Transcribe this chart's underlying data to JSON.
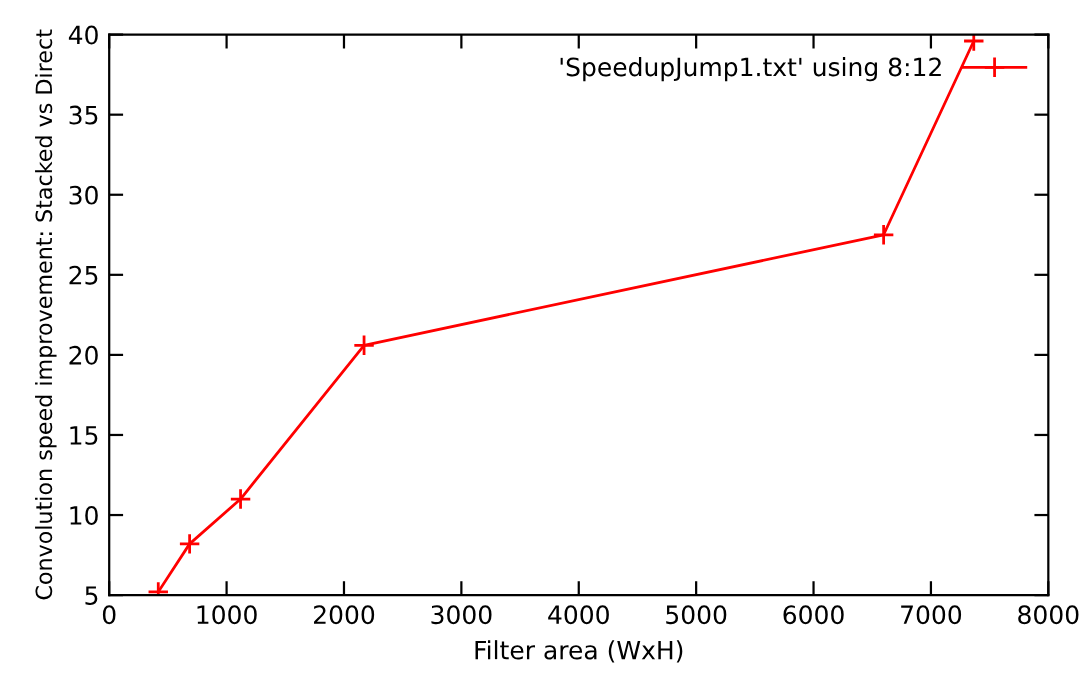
{
  "chart_data": {
    "type": "line",
    "xlabel": "Filter area (WxH)",
    "ylabel": "Convolution speed improvement: Stacked vs Direct",
    "x": [
      418,
      685,
      1119,
      2171,
      6597,
      7365
    ],
    "series": [
      {
        "name": "'SpeedupJump1.txt' using 8:12",
        "color": "#ff0000",
        "values": [
          5.2,
          8.2,
          11.0,
          20.6,
          27.5,
          39.6
        ]
      }
    ],
    "xlim": [
      0,
      8000
    ],
    "xticks": [
      0,
      1000,
      2000,
      3000,
      4000,
      5000,
      6000,
      7000,
      8000
    ],
    "ylim": [
      5,
      40
    ],
    "yticks": [
      5,
      10,
      15,
      20,
      25,
      30,
      35,
      40
    ],
    "grid": false,
    "legend": "top right",
    "marker": "cross",
    "line_style": "solid"
  }
}
